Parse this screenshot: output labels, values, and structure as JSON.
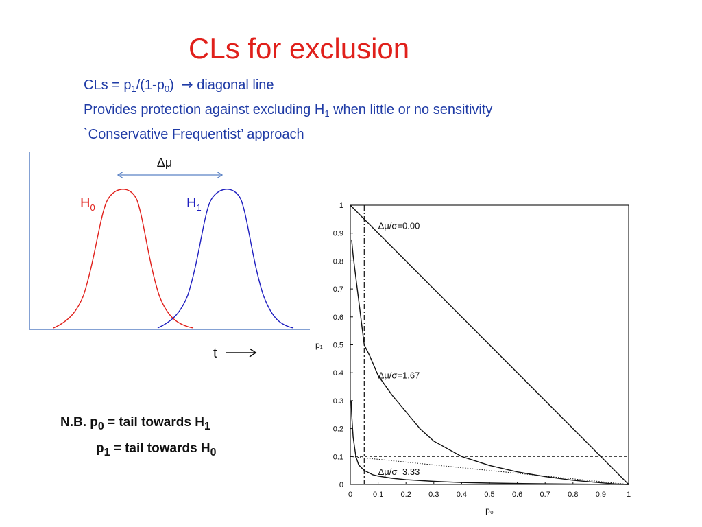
{
  "slide": {
    "title": "CLs for exclusion",
    "bullet1": {
      "pre": "CLs = p",
      "s1": "1",
      "mid": "/(1-p",
      "s2": "0",
      "post": ")",
      "arrow": "→",
      "tail": " diagonal line"
    },
    "bullet2": {
      "pre": "Provides protection against excluding H",
      "s1": "1",
      "post": " when little  or no sensitivity"
    },
    "bullet3": "`Conservative Frequentist’ approach"
  },
  "sketch": {
    "delta_label": "Δμ",
    "h0": {
      "letter": "H",
      "sub": "0",
      "color": "#e0201b"
    },
    "h1": {
      "letter": "H",
      "sub": "1",
      "color": "#1f1fc0"
    },
    "axis_color": "#5b82c5",
    "t_label": "t"
  },
  "note": {
    "l1": {
      "pre": "N.B. p",
      "s1": "0",
      "mid": " = tail towards H",
      "s2": "1"
    },
    "l2": {
      "pre": "p",
      "s1": "1",
      "mid": " = tail towards H",
      "s2": "0"
    }
  },
  "chart_data": {
    "type": "line",
    "xlabel": "p₀",
    "ylabel": "p₁",
    "xlim": [
      0,
      1
    ],
    "ylim": [
      0,
      1
    ],
    "xticks": [
      "0",
      "0.1",
      "0.2",
      "0.3",
      "0.4",
      "0.5",
      "0.6",
      "0.7",
      "0.8",
      "0.9",
      "1"
    ],
    "yticks": [
      "0",
      "0.1",
      "0.2",
      "0.3",
      "0.4",
      "0.5",
      "0.6",
      "0.7",
      "0.8",
      "0.9",
      "1"
    ],
    "grid": false,
    "series": [
      {
        "name": "Δμ/σ=0.00",
        "x": [
          0,
          1
        ],
        "y": [
          1,
          0
        ]
      },
      {
        "name": "Δμ/σ=1.67",
        "x": [
          0.005,
          0.01,
          0.02,
          0.03,
          0.05,
          0.07,
          0.1,
          0.15,
          0.2,
          0.25,
          0.3,
          0.4,
          0.5,
          0.6,
          0.7,
          0.8,
          0.9,
          0.95,
          1.0
        ],
        "y": [
          0.875,
          0.82,
          0.74,
          0.66,
          0.5,
          0.46,
          0.39,
          0.32,
          0.26,
          0.2,
          0.155,
          0.1,
          0.068,
          0.045,
          0.028,
          0.015,
          0.006,
          0.002,
          0.0
        ]
      },
      {
        "name": "Δμ/σ=3.33",
        "x": [
          0.003,
          0.005,
          0.01,
          0.02,
          0.03,
          0.05,
          0.08,
          0.1,
          0.15,
          0.2,
          0.3,
          0.4,
          0.5,
          0.6,
          0.7,
          0.8,
          0.9,
          1.0
        ],
        "y": [
          0.3,
          0.25,
          0.17,
          0.1,
          0.07,
          0.05,
          0.035,
          0.03,
          0.022,
          0.017,
          0.011,
          0.007,
          0.005,
          0.0035,
          0.0022,
          0.0012,
          0.0005,
          0.0
        ]
      },
      {
        "name": "CLs = 0.1",
        "style": "dotted",
        "x": [
          0,
          1
        ],
        "y": [
          0.1,
          0
        ]
      }
    ],
    "reference_lines": [
      {
        "orientation": "horizontal",
        "value": 0.1,
        "style": "dashed"
      },
      {
        "orientation": "vertical",
        "value": 0.05,
        "style": "dash-dot"
      }
    ],
    "annotations": [
      {
        "text": "Δμ/σ=0.00",
        "x": 0.1,
        "y": 0.915
      },
      {
        "text": "Δμ/σ=1.67",
        "x": 0.1,
        "y": 0.38
      },
      {
        "text": "Δμ/σ=3.33",
        "x": 0.1,
        "y": 0.035
      }
    ]
  }
}
